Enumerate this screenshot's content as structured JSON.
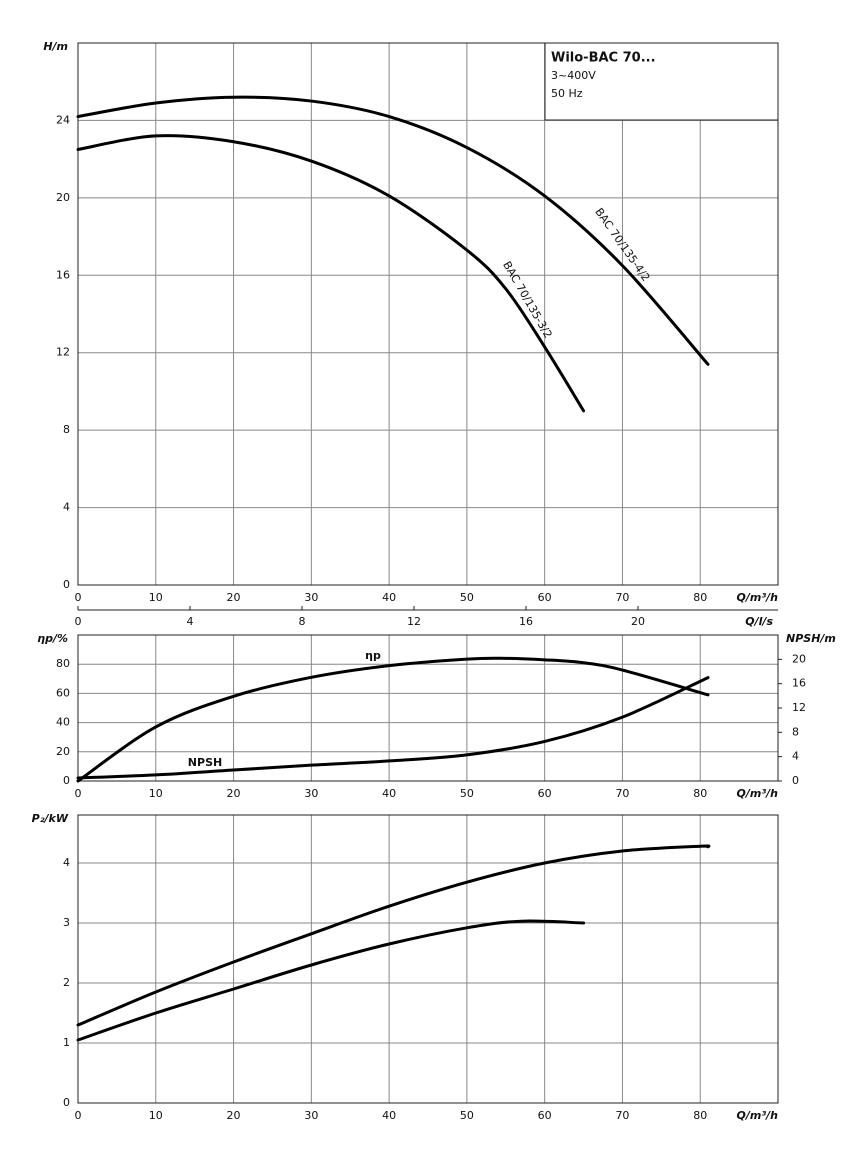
{
  "chart_data": [
    {
      "type": "line",
      "info_box": [
        "Wilo-BAC 70...",
        "3~400V",
        "50 Hz"
      ],
      "ylabel": "H/m",
      "xlabel": "Q/m³/h",
      "x2label": "Q/l/s",
      "xlim": [
        0,
        90
      ],
      "xticks": [
        0,
        10,
        20,
        30,
        40,
        50,
        60,
        70,
        80
      ],
      "x2lim": [
        0,
        25
      ],
      "x2ticks": [
        0,
        4,
        8,
        12,
        16,
        20
      ],
      "ylim": [
        0,
        28
      ],
      "yticks": [
        0,
        4,
        8,
        12,
        16,
        20,
        24
      ],
      "grid": true,
      "series": [
        {
          "name": "BAC 70/135-4/2",
          "color": "#000000",
          "x": [
            0,
            10,
            20,
            30,
            40,
            50,
            60,
            70,
            81
          ],
          "values": [
            24.2,
            24.9,
            25.2,
            25.0,
            24.2,
            22.6,
            20.1,
            16.5,
            11.4
          ]
        },
        {
          "name": "BAC 70/135-3/2",
          "color": "#000000",
          "x": [
            0,
            10,
            20,
            30,
            40,
            50,
            55,
            60,
            65
          ],
          "values": [
            22.5,
            23.2,
            22.9,
            21.9,
            20.1,
            17.3,
            15.3,
            12.3,
            9.0
          ]
        }
      ]
    },
    {
      "type": "line",
      "ylabel": "ηp/%",
      "y2label": "NPSH/m",
      "xlabel": "Q/m³/h",
      "xlim": [
        0,
        90
      ],
      "xticks": [
        0,
        10,
        20,
        30,
        40,
        50,
        60,
        70,
        80
      ],
      "ylim": [
        0,
        100
      ],
      "yticks": [
        0,
        20,
        40,
        60,
        80
      ],
      "y2lim": [
        0,
        24
      ],
      "y2ticks": [
        0,
        4,
        8,
        12,
        16,
        20
      ],
      "grid": true,
      "series": [
        {
          "name": "ηp",
          "color": "#000000",
          "x": [
            0,
            10,
            20,
            30,
            40,
            50,
            55,
            60,
            65,
            70,
            81
          ],
          "values": [
            0,
            37,
            58,
            71,
            79,
            83.5,
            84,
            83,
            81,
            76,
            59
          ]
        },
        {
          "name": "NPSH",
          "color": "#000000",
          "axis": "y2",
          "x": [
            0,
            10,
            20,
            30,
            40,
            50,
            60,
            70,
            81
          ],
          "values": [
            0.5,
            1.0,
            1.8,
            2.6,
            3.3,
            4.3,
            6.5,
            10.5,
            17
          ]
        }
      ]
    },
    {
      "type": "line",
      "ylabel": "P₂/kW",
      "xlabel": "Q/m³/h",
      "xlim": [
        0,
        90
      ],
      "xticks": [
        0,
        10,
        20,
        30,
        40,
        50,
        60,
        70,
        80
      ],
      "ylim": [
        0,
        4.8
      ],
      "yticks": [
        0,
        1,
        2,
        3,
        4
      ],
      "grid": true,
      "series": [
        {
          "color": "#000000",
          "x": [
            0,
            10,
            20,
            30,
            40,
            50,
            60,
            70,
            80,
            81
          ],
          "values": [
            1.3,
            1.85,
            2.35,
            2.82,
            3.28,
            3.68,
            4.0,
            4.2,
            4.28,
            4.27
          ]
        },
        {
          "color": "#000000",
          "x": [
            0,
            10,
            20,
            30,
            40,
            50,
            57,
            65
          ],
          "values": [
            1.05,
            1.5,
            1.9,
            2.3,
            2.65,
            2.92,
            3.03,
            3.0
          ]
        }
      ]
    }
  ]
}
